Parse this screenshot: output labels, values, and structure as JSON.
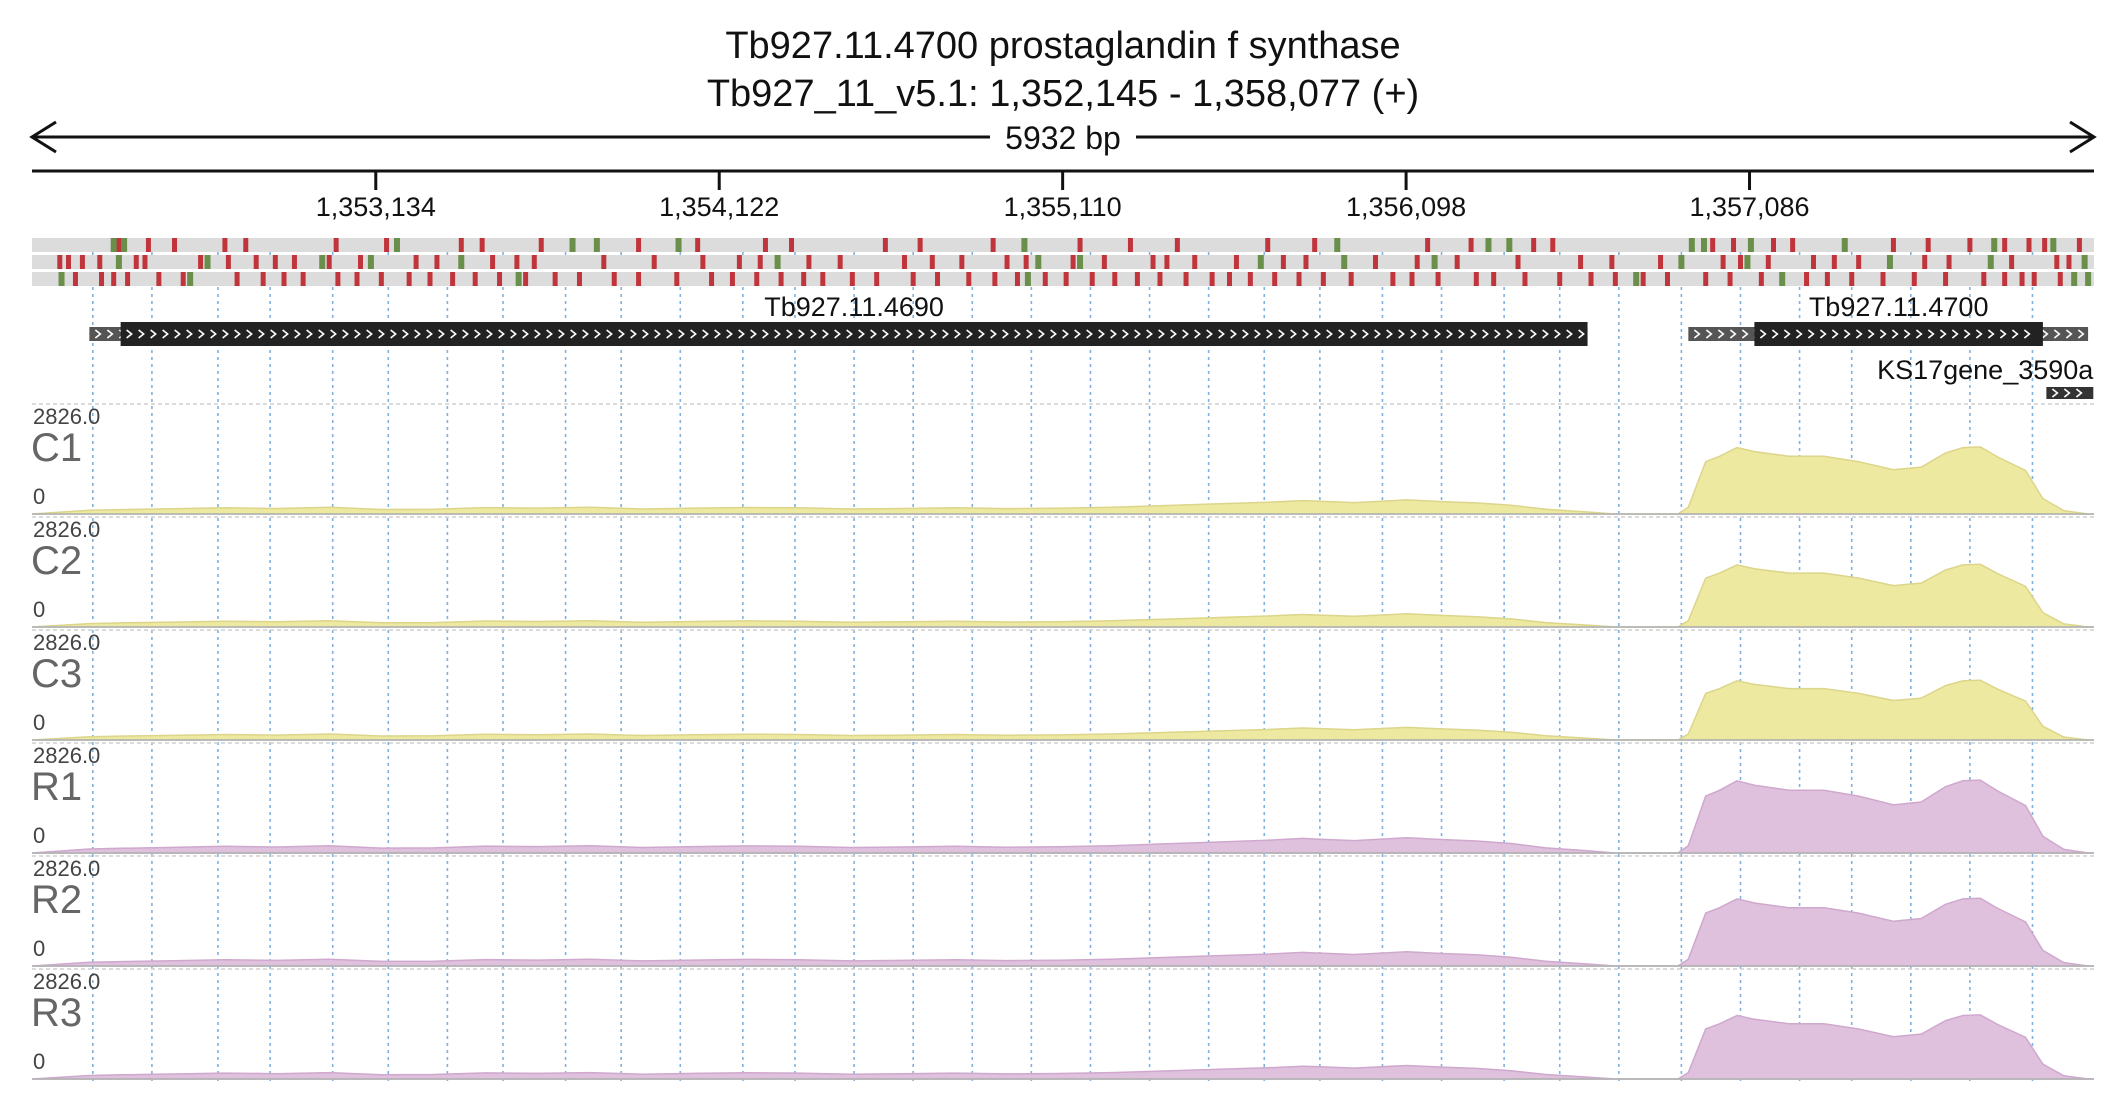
{
  "header": {
    "title": "Tb927.11.4700  prostaglandin f synthase",
    "subtitle": "Tb927_11_v5.1: 1,352,145 - 1,358,077 (+)",
    "span_label": "5932 bp"
  },
  "chart_data": {
    "type": "area",
    "title": "Tb927.11.4700  prostaglandin f synthase",
    "subtitle": "Tb927_11_v5.1: 1,352,145 - 1,358,077 (+)",
    "region": {
      "chrom": "Tb927_11_v5.1",
      "start": 1352145,
      "end": 1358077,
      "strand": "+"
    },
    "xlim": [
      1352145,
      1358077
    ],
    "ticks": [
      {
        "pos": 1353134,
        "label": "1,353,134"
      },
      {
        "pos": 1354122,
        "label": "1,354,122"
      },
      {
        "pos": 1355110,
        "label": "1,355,110"
      },
      {
        "pos": 1356098,
        "label": "1,356,098"
      },
      {
        "pos": 1357086,
        "label": "1,357,086"
      }
    ],
    "grid": true,
    "gridlines": [
      1352320,
      1352490,
      1352680,
      1352830,
      1353010,
      1353170,
      1353340,
      1353500,
      1353680,
      1353840,
      1354010,
      1354190,
      1354340,
      1354510,
      1354680,
      1354850,
      1355020,
      1355190,
      1355360,
      1355530,
      1355690,
      1355850,
      1356030,
      1356200,
      1356380,
      1356540,
      1356710,
      1356890,
      1357060,
      1357230,
      1357380,
      1357550,
      1357720,
      1357900
    ],
    "ylim": [
      0,
      2826
    ],
    "y_max_label": "2826.0",
    "y_min_label": "0",
    "genes": [
      {
        "name": "Tb927.11.4690",
        "start": 1352400,
        "end": 1356620,
        "utr_start": 1352310,
        "utr_end": 1356620,
        "strand": "+",
        "row": 0,
        "label_pos": "above"
      },
      {
        "name": "Tb927.11.4700",
        "start": 1357100,
        "end": 1357930,
        "utr_start": 1356910,
        "utr_end": 1358060,
        "strand": "+",
        "row": 0,
        "label_pos": "above"
      },
      {
        "name": "KS17gene_3590a",
        "start": 1357940,
        "end": 1358075,
        "strand": "+",
        "row": 1,
        "label_pos": "above"
      }
    ],
    "frame_colors": {
      "stop": "#c0353b",
      "start": "#6a8f4b",
      "background": "#dcdcdc"
    },
    "reading_frames": [
      {
        "frame": 1,
        "stops": [
          1352395,
          1352480,
          1352555,
          1352700,
          1352760,
          1353020,
          1353165,
          1353380,
          1353440,
          1353610,
          1353890,
          1354060,
          1354255,
          1354330,
          1354600,
          1354700,
          1354910,
          1355160,
          1355305,
          1355440,
          1355700,
          1355835,
          1356160,
          1356285,
          1356465,
          1356520,
          1356980,
          1357040,
          1357155,
          1357210,
          1357500,
          1357600,
          1357720,
          1357820,
          1357890,
          1357935,
          1358035
        ],
        "starts": [
          1352380,
          1352410,
          1353195,
          1353700,
          1353770,
          1354005,
          1355000,
          1355900,
          1356335,
          1356395,
          1356920,
          1356955,
          1357090,
          1357360,
          1357790,
          1357960
        ]
      },
      {
        "frame": 2,
        "stops": [
          1352225,
          1352250,
          1352290,
          1352340,
          1352445,
          1352470,
          1352630,
          1352710,
          1352790,
          1352845,
          1352900,
          1353000,
          1353090,
          1353250,
          1353310,
          1353470,
          1353540,
          1353590,
          1353790,
          1353935,
          1354075,
          1354180,
          1354240,
          1354380,
          1354470,
          1354655,
          1354735,
          1354820,
          1354950,
          1355005,
          1355140,
          1355230,
          1355370,
          1355410,
          1355490,
          1355610,
          1355745,
          1355810,
          1356010,
          1356130,
          1356245,
          1356420,
          1356600,
          1356690,
          1356830,
          1357010,
          1357060,
          1357140,
          1357270,
          1357330,
          1357400,
          1357590,
          1357660,
          1357840,
          1357970,
          1358005
        ],
        "starts": [
          1352395,
          1352650,
          1352980,
          1353120,
          1353380,
          1354290,
          1355040,
          1355160,
          1355680,
          1355920,
          1356180,
          1356890,
          1357080,
          1357490,
          1357780,
          1358050
        ]
      },
      {
        "frame": 3,
        "stops": [
          1352270,
          1352345,
          1352380,
          1352420,
          1352510,
          1352580,
          1352735,
          1352810,
          1352870,
          1352925,
          1353025,
          1353080,
          1353150,
          1353230,
          1353290,
          1353355,
          1353420,
          1353490,
          1353565,
          1353650,
          1353720,
          1353820,
          1353890,
          1354000,
          1354100,
          1354160,
          1354230,
          1354300,
          1354365,
          1354420,
          1354505,
          1354575,
          1354680,
          1354750,
          1354840,
          1354915,
          1354980,
          1355060,
          1355120,
          1355195,
          1355260,
          1355325,
          1355390,
          1355465,
          1355540,
          1355590,
          1355650,
          1355720,
          1355790,
          1355860,
          1355940,
          1356060,
          1356115,
          1356190,
          1356300,
          1356350,
          1356440,
          1356540,
          1356630,
          1356700,
          1356780,
          1356850,
          1356960,
          1357030,
          1357120,
          1357250,
          1357310,
          1357380,
          1357470,
          1357560,
          1357650,
          1357760,
          1357820,
          1357870,
          1357905,
          1357980
        ],
        "starts": [
          1352230,
          1352600,
          1353545,
          1355010,
          1356760,
          1357180,
          1358020,
          1358060
        ]
      }
    ],
    "series": [
      {
        "name": "C1",
        "color": "#eee9a0",
        "stroke": "#dcd58a",
        "scale": 0.92
      },
      {
        "name": "C2",
        "color": "#eee9a0",
        "stroke": "#dcd58a",
        "scale": 0.86
      },
      {
        "name": "C3",
        "color": "#eee9a0",
        "stroke": "#dcd58a",
        "scale": 0.82
      },
      {
        "name": "R1",
        "color": "#dfc1de",
        "stroke": "#cfa8cd",
        "scale": 1.0
      },
      {
        "name": "R2",
        "color": "#dfc1de",
        "stroke": "#cfa8cd",
        "scale": 0.93
      },
      {
        "name": "R3",
        "color": "#dfc1de",
        "stroke": "#cfa8cd",
        "scale": 0.88
      }
    ],
    "coverage_profile": {
      "x": [
        1352145,
        1352310,
        1352400,
        1352550,
        1352700,
        1352850,
        1353000,
        1353150,
        1353300,
        1353450,
        1353600,
        1353750,
        1353900,
        1354050,
        1354200,
        1354350,
        1354500,
        1354650,
        1354800,
        1354950,
        1355100,
        1355250,
        1355400,
        1355550,
        1355700,
        1355800,
        1355850,
        1355950,
        1356100,
        1356200,
        1356300,
        1356400,
        1356500,
        1356620,
        1356700,
        1356830,
        1356880,
        1356910,
        1356960,
        1357000,
        1357050,
        1357100,
        1357200,
        1357300,
        1357400,
        1357500,
        1357580,
        1357650,
        1357700,
        1357750,
        1357800,
        1357880,
        1357930,
        1357990,
        1358060,
        1358077
      ],
      "y": [
        0,
        110,
        130,
        155,
        185,
        165,
        200,
        135,
        140,
        190,
        175,
        200,
        150,
        175,
        195,
        185,
        150,
        165,
        185,
        160,
        170,
        200,
        250,
        300,
        350,
        400,
        380,
        340,
        420,
        370,
        330,
        260,
        140,
        60,
        0,
        0,
        0,
        200,
        1560,
        1720,
        1980,
        1860,
        1720,
        1720,
        1560,
        1320,
        1400,
        1820,
        1980,
        2000,
        1700,
        1300,
        460,
        100,
        0,
        0
      ]
    }
  }
}
